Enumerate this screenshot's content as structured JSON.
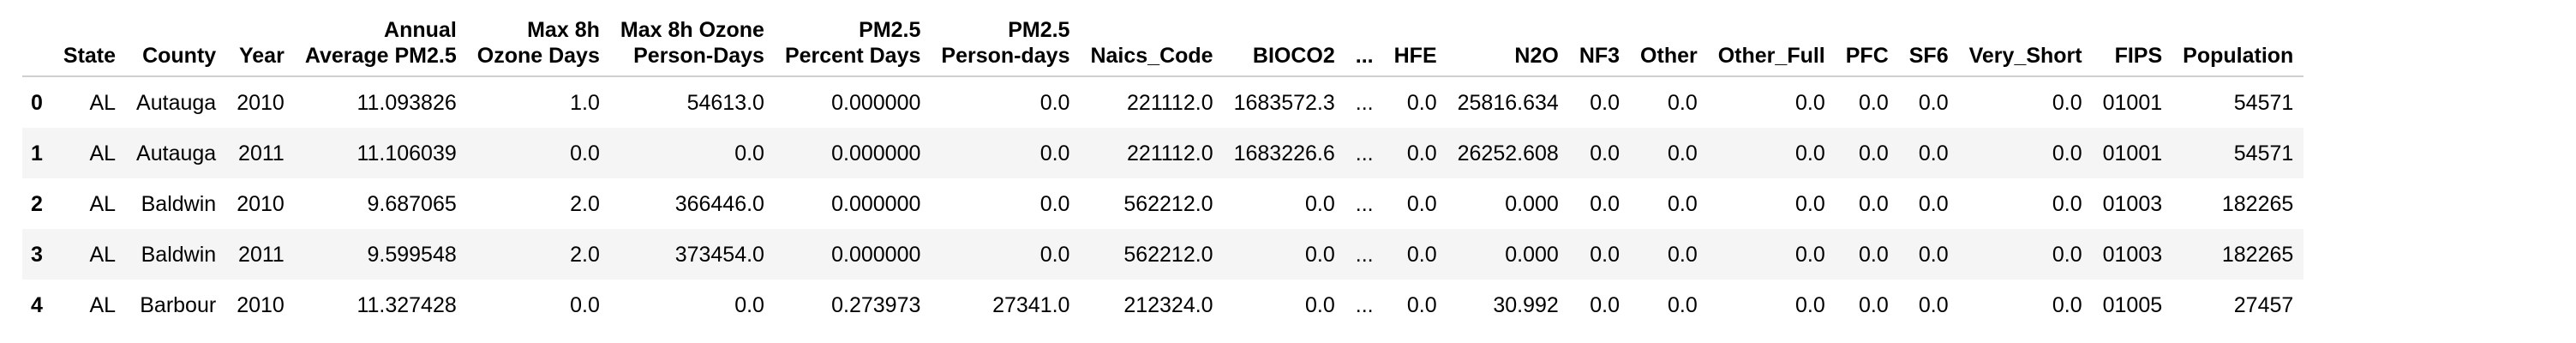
{
  "table": {
    "columns": [
      {
        "key": "state",
        "lines": [
          "State"
        ]
      },
      {
        "key": "county",
        "lines": [
          "County"
        ]
      },
      {
        "key": "year",
        "lines": [
          "Year"
        ]
      },
      {
        "key": "annual_avg_pm25",
        "lines": [
          "Annual",
          "Average PM2.5"
        ]
      },
      {
        "key": "max8h_ozone_days",
        "lines": [
          "Max 8h",
          "Ozone Days"
        ]
      },
      {
        "key": "max8h_ozone_person_days",
        "lines": [
          "Max 8h Ozone",
          "Person-Days"
        ]
      },
      {
        "key": "pm25_percent_days",
        "lines": [
          "PM2.5",
          "Percent Days"
        ]
      },
      {
        "key": "pm25_person_days",
        "lines": [
          "PM2.5",
          "Person-days"
        ]
      },
      {
        "key": "naics_code",
        "lines": [
          "Naics_Code"
        ]
      },
      {
        "key": "bioco2",
        "lines": [
          "BIOCO2"
        ]
      },
      {
        "key": "ellipsis",
        "lines": [
          "..."
        ]
      },
      {
        "key": "hfe",
        "lines": [
          "HFE"
        ]
      },
      {
        "key": "n2o",
        "lines": [
          "N2O"
        ]
      },
      {
        "key": "nf3",
        "lines": [
          "NF3"
        ]
      },
      {
        "key": "other",
        "lines": [
          "Other"
        ]
      },
      {
        "key": "other_full",
        "lines": [
          "Other_Full"
        ]
      },
      {
        "key": "pfc",
        "lines": [
          "PFC"
        ]
      },
      {
        "key": "sf6",
        "lines": [
          "SF6"
        ]
      },
      {
        "key": "very_short",
        "lines": [
          "Very_Short"
        ]
      },
      {
        "key": "fips",
        "lines": [
          "FIPS"
        ]
      },
      {
        "key": "population",
        "lines": [
          "Population"
        ]
      }
    ],
    "rows": [
      {
        "index": "0",
        "cells": [
          "AL",
          "Autauga",
          "2010",
          "11.093826",
          "1.0",
          "54613.0",
          "0.000000",
          "0.0",
          "221112.0",
          "1683572.3",
          "...",
          "0.0",
          "25816.634",
          "0.0",
          "0.0",
          "0.0",
          "0.0",
          "0.0",
          "0.0",
          "01001",
          "54571"
        ]
      },
      {
        "index": "1",
        "cells": [
          "AL",
          "Autauga",
          "2011",
          "11.106039",
          "0.0",
          "0.0",
          "0.000000",
          "0.0",
          "221112.0",
          "1683226.6",
          "...",
          "0.0",
          "26252.608",
          "0.0",
          "0.0",
          "0.0",
          "0.0",
          "0.0",
          "0.0",
          "01001",
          "54571"
        ]
      },
      {
        "index": "2",
        "cells": [
          "AL",
          "Baldwin",
          "2010",
          "9.687065",
          "2.0",
          "366446.0",
          "0.000000",
          "0.0",
          "562212.0",
          "0.0",
          "...",
          "0.0",
          "0.000",
          "0.0",
          "0.0",
          "0.0",
          "0.0",
          "0.0",
          "0.0",
          "01003",
          "182265"
        ]
      },
      {
        "index": "3",
        "cells": [
          "AL",
          "Baldwin",
          "2011",
          "9.599548",
          "2.0",
          "373454.0",
          "0.000000",
          "0.0",
          "562212.0",
          "0.0",
          "...",
          "0.0",
          "0.000",
          "0.0",
          "0.0",
          "0.0",
          "0.0",
          "0.0",
          "0.0",
          "01003",
          "182265"
        ]
      },
      {
        "index": "4",
        "cells": [
          "AL",
          "Barbour",
          "2010",
          "11.327428",
          "0.0",
          "0.0",
          "0.273973",
          "27341.0",
          "212324.0",
          "0.0",
          "...",
          "0.0",
          "30.992",
          "0.0",
          "0.0",
          "0.0",
          "0.0",
          "0.0",
          "0.0",
          "01005",
          "27457"
        ]
      }
    ]
  }
}
